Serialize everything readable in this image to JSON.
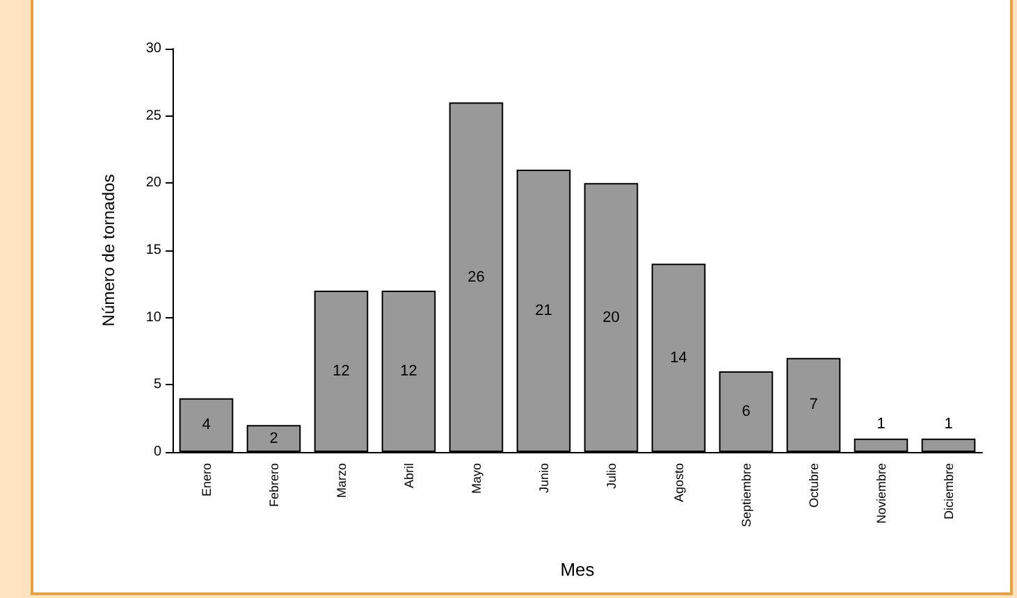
{
  "chart_data": {
    "type": "bar",
    "xlabel": "Mes",
    "ylabel": "Número de tornados",
    "categories": [
      "Enero",
      "Febrero",
      "Marzo",
      "Abril",
      "Mayo",
      "Junio",
      "Julio",
      "Agosto",
      "Septiembre",
      "Octubre",
      "Noviembre",
      "Diciembre"
    ],
    "values": [
      4,
      2,
      12,
      12,
      26,
      21,
      20,
      14,
      6,
      7,
      1,
      1
    ],
    "color": "#999999",
    "ylim": [
      0,
      30
    ],
    "yticks": [
      0,
      5,
      10,
      15,
      20,
      25,
      30
    ],
    "grid": false,
    "data_labels": true
  }
}
